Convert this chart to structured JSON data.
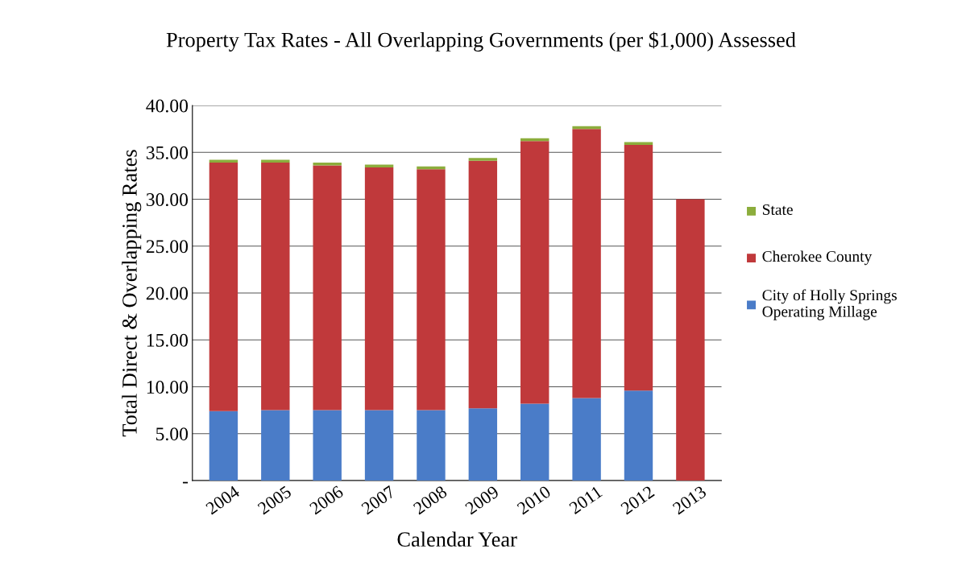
{
  "chart_data": {
    "type": "bar",
    "title": "Property Tax Rates - All Overlapping Governments (per $1,000) Assessed",
    "xlabel": "Calendar Year",
    "ylabel": "Total Direct & Overlapping Rates",
    "categories": [
      "2004",
      "2005",
      "2006",
      "2007",
      "2008",
      "2009",
      "2010",
      "2011",
      "2012",
      "2013"
    ],
    "stacked": true,
    "series": [
      {
        "name": "City of Holly Springs Operating Millage",
        "color": "#4a7cc8",
        "values": [
          7.4,
          7.5,
          7.5,
          7.5,
          7.5,
          7.7,
          8.2,
          8.8,
          9.6,
          0
        ]
      },
      {
        "name": "Cherokee County",
        "color": "#c0393b",
        "values": [
          26.5,
          26.4,
          26.1,
          25.9,
          25.7,
          26.4,
          28.0,
          28.7,
          26.2,
          30.0
        ]
      },
      {
        "name": "State",
        "color": "#8cad3c",
        "values": [
          0.3,
          0.3,
          0.3,
          0.3,
          0.3,
          0.3,
          0.3,
          0.3,
          0.3,
          0
        ]
      }
    ],
    "ylim": [
      0,
      40
    ],
    "yticks": [
      {
        "value": 0,
        "label": "-"
      },
      {
        "value": 5,
        "label": "5.00"
      },
      {
        "value": 10,
        "label": "10.00"
      },
      {
        "value": 15,
        "label": "15.00"
      },
      {
        "value": 20,
        "label": "20.00"
      },
      {
        "value": 25,
        "label": "25.00"
      },
      {
        "value": 30,
        "label": "30.00"
      },
      {
        "value": 35,
        "label": "35.00"
      },
      {
        "value": 40,
        "label": "40.00"
      }
    ],
    "grid": "y",
    "legend": "right"
  }
}
